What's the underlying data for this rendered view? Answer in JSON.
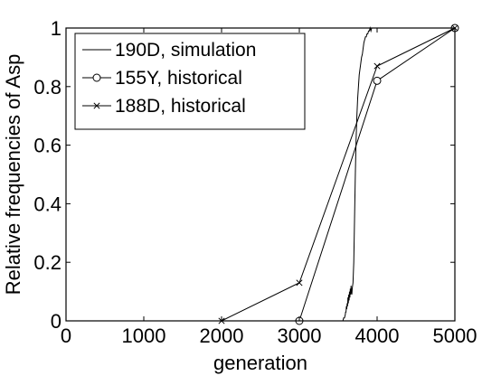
{
  "chart_data": {
    "type": "line",
    "xlabel": "generation",
    "ylabel": "Relative frequencies of Asp",
    "xlim": [
      0,
      5000
    ],
    "ylim": [
      0,
      1
    ],
    "xticks": [
      0,
      1000,
      2000,
      3000,
      4000,
      5000
    ],
    "xtick_labels": [
      "0",
      "1000",
      "2000",
      "3000",
      "4000",
      "5000"
    ],
    "yticks": [
      0,
      0.2,
      0.4,
      0.6,
      0.8,
      1
    ],
    "ytick_labels": [
      "0",
      "0.2",
      "0.4",
      "0.6",
      "0.8",
      "1"
    ],
    "grid": false,
    "legend_position": "top-left",
    "series": [
      {
        "name": "190D, simulation",
        "marker": "none",
        "x": [
          3540,
          3560,
          3570,
          3580,
          3590,
          3595,
          3600,
          3605,
          3610,
          3615,
          3620,
          3625,
          3630,
          3635,
          3640,
          3645,
          3650,
          3655,
          3660,
          3665,
          3670,
          3675,
          3680,
          3690,
          3700,
          3710,
          3720,
          3730,
          3740,
          3750,
          3760,
          3770,
          3780,
          3790,
          3800,
          3810,
          3820,
          3830,
          3840,
          3850,
          3860,
          3870,
          3880,
          3890,
          3900,
          3910,
          3920,
          3930,
          3940,
          3950,
          3960,
          3970,
          3980,
          3990,
          4000
        ],
        "y": [
          0.0,
          0.0,
          0.01,
          0.01,
          0.02,
          0.03,
          0.03,
          0.05,
          0.04,
          0.06,
          0.05,
          0.08,
          0.06,
          0.09,
          0.07,
          0.1,
          0.08,
          0.11,
          0.09,
          0.12,
          0.1,
          0.09,
          0.11,
          0.13,
          0.2,
          0.35,
          0.5,
          0.62,
          0.7,
          0.76,
          0.8,
          0.84,
          0.86,
          0.88,
          0.9,
          0.91,
          0.93,
          0.95,
          0.96,
          0.97,
          0.97,
          0.98,
          0.98,
          0.99,
          0.99,
          1.0,
          0.99,
          1.0,
          1.0,
          1.0,
          1.0,
          1.0,
          1.0,
          1.0,
          1.0
        ]
      },
      {
        "name": "155Y, historical",
        "marker": "circle",
        "x": [
          3000,
          4000,
          5000
        ],
        "y": [
          0,
          0.82,
          1
        ]
      },
      {
        "name": "188D, historical",
        "marker": "x",
        "x": [
          2000,
          3000,
          4000,
          5000
        ],
        "y": [
          0,
          0.13,
          0.87,
          1
        ]
      }
    ]
  }
}
